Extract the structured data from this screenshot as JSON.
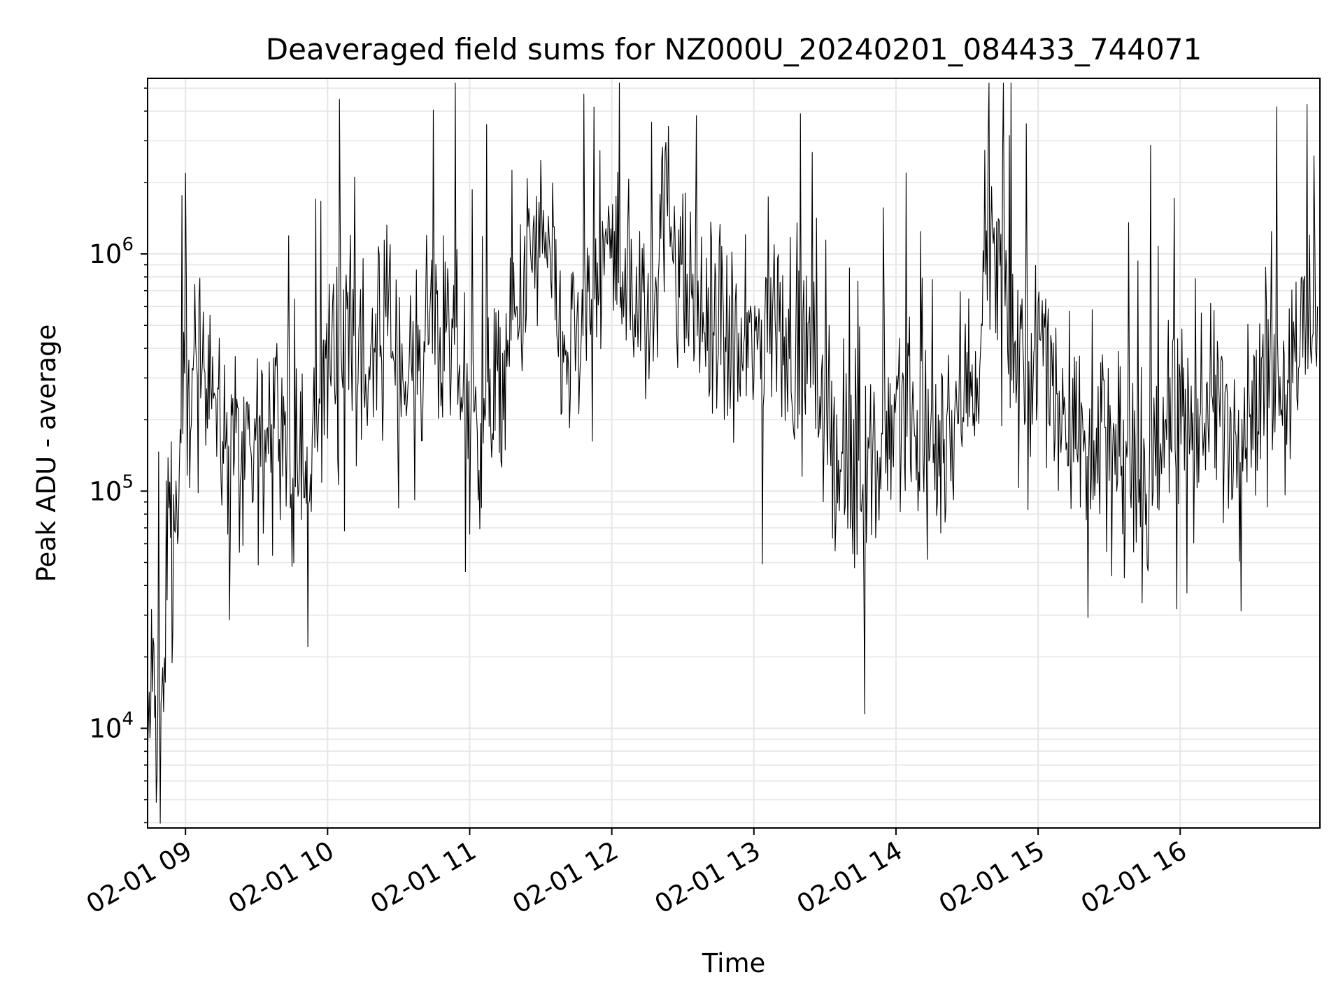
{
  "chart_data": {
    "type": "line",
    "title": "Deaveraged field sums for NZ000U_20240201_084433_744071",
    "xlabel": "Time",
    "ylabel": "Peak ADU - average",
    "yscale": "log",
    "grid": true,
    "line_color": "#000000",
    "grid_color": "#e6e6e6",
    "xlim": [
      "2024-02-01 08:44",
      "2024-02-01 16:59"
    ],
    "ylim": [
      3800,
      5500000
    ],
    "x_ticks": [
      {
        "value": "2024-02-01 09:00",
        "label": "02-01 09"
      },
      {
        "value": "2024-02-01 10:00",
        "label": "02-01 10"
      },
      {
        "value": "2024-02-01 11:00",
        "label": "02-01 11"
      },
      {
        "value": "2024-02-01 12:00",
        "label": "02-01 12"
      },
      {
        "value": "2024-02-01 13:00",
        "label": "02-01 13"
      },
      {
        "value": "2024-02-01 14:00",
        "label": "02-01 14"
      },
      {
        "value": "2024-02-01 15:00",
        "label": "02-01 15"
      },
      {
        "value": "2024-02-01 16:00",
        "label": "02-01 16"
      }
    ],
    "y_ticks": [
      {
        "value": 10000,
        "base": "10",
        "exp": "4"
      },
      {
        "value": 100000,
        "base": "10",
        "exp": "5"
      },
      {
        "value": 1000000,
        "base": "10",
        "exp": "6"
      }
    ],
    "series": [
      {
        "x": [
          "2024-02-01 08:44",
          "2024-02-01 08:46",
          "2024-02-01 08:47",
          "2024-02-01 08:49",
          "2024-02-01 08:50",
          "2024-02-01 08:53",
          "2024-02-01 08:55",
          "2024-02-01 08:57",
          "2024-02-01 09:00",
          "2024-02-01 09:05",
          "2024-02-01 09:10",
          "2024-02-01 09:15",
          "2024-02-01 09:20",
          "2024-02-01 09:22",
          "2024-02-01 09:25",
          "2024-02-01 09:30",
          "2024-02-01 09:35",
          "2024-02-01 09:40",
          "2024-02-01 09:45",
          "2024-02-01 09:50",
          "2024-02-01 09:52",
          "2024-02-01 09:55",
          "2024-02-01 10:00",
          "2024-02-01 10:05",
          "2024-02-01 10:10",
          "2024-02-01 10:15",
          "2024-02-01 10:20",
          "2024-02-01 10:25",
          "2024-02-01 10:30",
          "2024-02-01 10:35",
          "2024-02-01 10:40",
          "2024-02-01 10:45",
          "2024-02-01 10:50",
          "2024-02-01 10:55",
          "2024-02-01 11:00",
          "2024-02-01 11:05",
          "2024-02-01 11:10",
          "2024-02-01 11:15",
          "2024-02-01 11:20",
          "2024-02-01 11:25",
          "2024-02-01 11:30",
          "2024-02-01 11:35",
          "2024-02-01 11:40",
          "2024-02-01 11:45",
          "2024-02-01 11:50",
          "2024-02-01 11:55",
          "2024-02-01 12:00",
          "2024-02-01 12:05",
          "2024-02-01 12:10",
          "2024-02-01 12:15",
          "2024-02-01 12:20",
          "2024-02-01 12:25",
          "2024-02-01 12:30",
          "2024-02-01 12:35",
          "2024-02-01 12:40",
          "2024-02-01 12:45",
          "2024-02-01 12:50",
          "2024-02-01 12:55",
          "2024-02-01 13:00",
          "2024-02-01 13:05",
          "2024-02-01 13:10",
          "2024-02-01 13:15",
          "2024-02-01 13:20",
          "2024-02-01 13:25",
          "2024-02-01 13:30",
          "2024-02-01 13:35",
          "2024-02-01 13:40",
          "2024-02-01 13:45",
          "2024-02-01 13:50",
          "2024-02-01 13:55",
          "2024-02-01 14:00",
          "2024-02-01 14:05",
          "2024-02-01 14:10",
          "2024-02-01 14:15",
          "2024-02-01 14:20",
          "2024-02-01 14:25",
          "2024-02-01 14:30",
          "2024-02-01 14:35",
          "2024-02-01 14:40",
          "2024-02-01 14:45",
          "2024-02-01 14:50",
          "2024-02-01 14:55",
          "2024-02-01 15:00",
          "2024-02-01 15:05",
          "2024-02-01 15:10",
          "2024-02-01 15:15",
          "2024-02-01 15:20",
          "2024-02-01 15:25",
          "2024-02-01 15:30",
          "2024-02-01 15:35",
          "2024-02-01 15:40",
          "2024-02-01 15:45",
          "2024-02-01 15:50",
          "2024-02-01 15:55",
          "2024-02-01 16:00",
          "2024-02-01 16:05",
          "2024-02-01 16:10",
          "2024-02-01 16:15",
          "2024-02-01 16:20",
          "2024-02-01 16:25",
          "2024-02-01 16:30",
          "2024-02-01 16:35",
          "2024-02-01 16:40",
          "2024-02-01 16:45",
          "2024-02-01 16:50",
          "2024-02-01 16:55",
          "2024-02-01 16:58"
        ],
        "y": [
          7000,
          20000,
          9500,
          16000,
          6800,
          150000,
          50000,
          100000,
          300000,
          250000,
          500000,
          150000,
          180000,
          160000,
          100000,
          150000,
          200000,
          220000,
          130000,
          110000,
          90000,
          200000,
          350000,
          500000,
          600000,
          300000,
          400000,
          500000,
          350000,
          300000,
          450000,
          600000,
          350000,
          400000,
          180000,
          200000,
          250000,
          300000,
          500000,
          900000,
          1200000,
          700000,
          350000,
          400000,
          600000,
          900000,
          1000000,
          800000,
          700000,
          500000,
          1200000,
          1500000,
          700000,
          600000,
          500000,
          450000,
          400000,
          350000,
          400000,
          550000,
          500000,
          450000,
          400000,
          350000,
          200000,
          150000,
          120000,
          100000,
          120000,
          150000,
          250000,
          200000,
          150000,
          140000,
          180000,
          200000,
          300000,
          350000,
          1400000,
          600000,
          350000,
          300000,
          400000,
          350000,
          250000,
          200000,
          150000,
          200000,
          150000,
          100000,
          120000,
          100000,
          150000,
          200000,
          220000,
          180000,
          200000,
          250000,
          200000,
          180000,
          250000,
          300000,
          350000,
          300000,
          400000,
          500000,
          600000
        ]
      }
    ]
  }
}
